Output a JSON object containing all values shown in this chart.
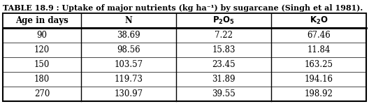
{
  "title": "TABLE 18.9 : Uptake of major nutrients (kg ha⁻¹) by sugarcane (Singh et al 1981).",
  "headers": [
    "Age in days",
    "N",
    "P₂O₅",
    "K₂O"
  ],
  "rows": [
    [
      "90",
      "38.69",
      "7.22",
      "67.46"
    ],
    [
      "120",
      "98.56",
      "15.83",
      "11.84"
    ],
    [
      "150",
      "103.57",
      "23.45",
      "163.25"
    ],
    [
      "180",
      "119.73",
      "31.89",
      "194.16"
    ],
    [
      "270",
      "130.97",
      "39.55",
      "198.92"
    ]
  ],
  "background_color": "#ffffff",
  "border_color": "#000000",
  "title_fontsize": 8.0,
  "header_fontsize": 8.5,
  "cell_fontsize": 8.5,
  "fig_width": 5.28,
  "fig_height": 1.49,
  "dpi": 100
}
